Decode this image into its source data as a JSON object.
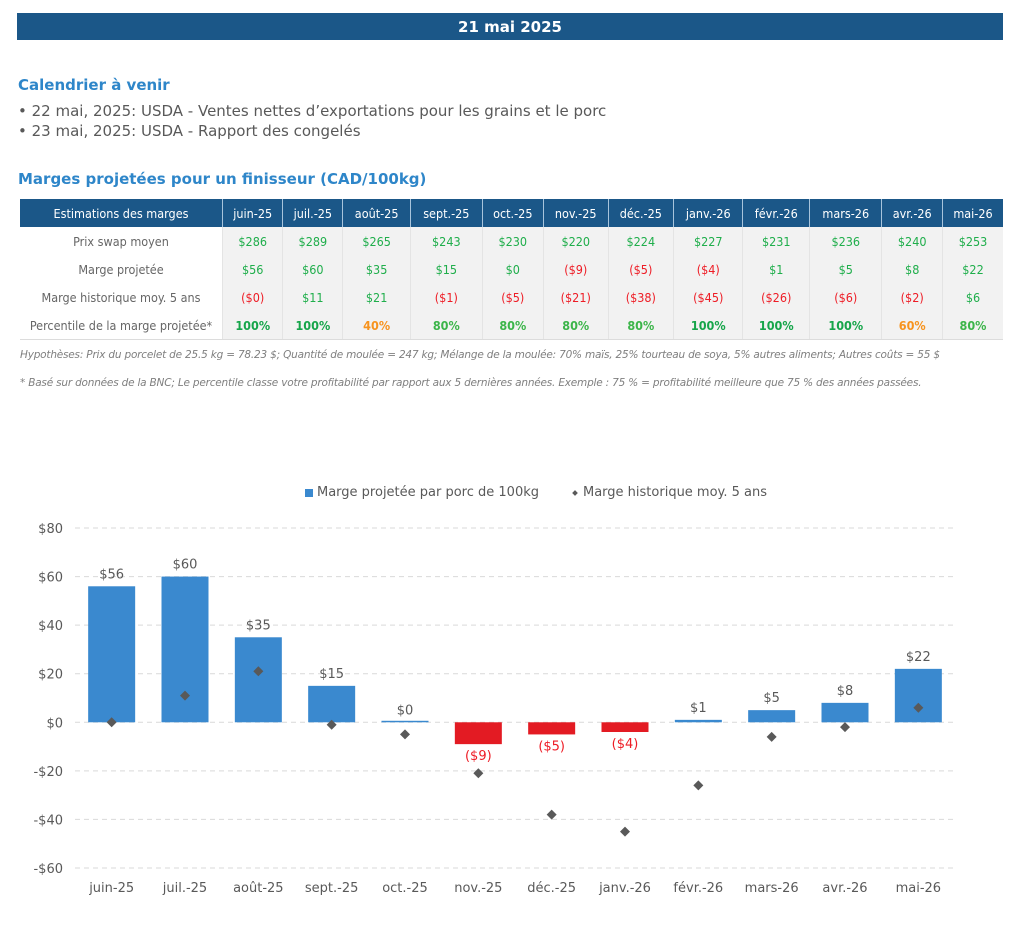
{
  "header": {
    "date": "21 mai 2025"
  },
  "calendar": {
    "title": "Calendrier à venir",
    "items": [
      "• 22 mai, 2025: USDA - Ventes nettes d’exportations pour les grains et le porc",
      "• 23 mai, 2025: USDA - Rapport des congelés"
    ]
  },
  "margins_section": {
    "title": "Marges projetées pour un finisseur (CAD/100kg)"
  },
  "table": {
    "corner": "Estimations des marges",
    "months": [
      "juin-25",
      "juil.-25",
      "août-25",
      "sept.-25",
      "oct.-25",
      "nov.-25",
      "déc.-25",
      "janv.-26",
      "févr.-26",
      "mars-26",
      "avr.-26",
      "mai-26"
    ],
    "rows": [
      {
        "label": "Prix swap moyen",
        "cells": [
          "$286",
          "$289",
          "$265",
          "$243",
          "$230",
          "$220",
          "$224",
          "$227",
          "$231",
          "$236",
          "$240",
          "$253"
        ]
      },
      {
        "label": "Marge projetée",
        "cells": [
          "$56",
          "$60",
          "$35",
          "$15",
          "$0",
          "($9)",
          "($5)",
          "($4)",
          "$1",
          "$5",
          "$8",
          "$22"
        ]
      },
      {
        "label": "Marge historique moy. 5 ans",
        "cells": [
          "($0)",
          "$11",
          "$21",
          "($1)",
          "($5)",
          "($21)",
          "($38)",
          "($45)",
          "($26)",
          "($6)",
          "($2)",
          "$6"
        ]
      },
      {
        "label": "Percentile de la marge projetée*",
        "cells": [
          "100%",
          "100%",
          "40%",
          "80%",
          "80%",
          "80%",
          "80%",
          "100%",
          "100%",
          "100%",
          "60%",
          "80%"
        ]
      }
    ]
  },
  "notes": {
    "hypotheses": "Hypothèses: Prix du porcelet de 25.5 kg = 78.23 $; Quantité de moulée = 247 kg; Mélange de la moulée: 70% maïs, 25% tourteau de soya, 5% autres aliments; Autres coûts = 55 $",
    "footnote": "* Basé sur données de la BNC; Le percentile classe votre profitabilité par rapport aux 5 dernières années. Exemple : 75 % = profitabilité meilleure que 75 % des années passées."
  },
  "colors": {
    "brand": "#1b5788",
    "bar_positive": "#3a89cf",
    "bar_negative": "#e31b23",
    "marker": "#595959",
    "positive_text": "#1fae4b",
    "negative_text": "#ee1c25",
    "mid_percentile": "#f7931e"
  },
  "chart_data": {
    "type": "bar",
    "title": "",
    "xlabel": "",
    "ylabel": "",
    "categories": [
      "juin-25",
      "juil.-25",
      "août-25",
      "sept.-25",
      "oct.-25",
      "nov.-25",
      "déc.-25",
      "janv.-26",
      "févr.-26",
      "mars-26",
      "avr.-26",
      "mai-26"
    ],
    "series": [
      {
        "name": "Marge projetée par porc de 100kg",
        "kind": "bar",
        "values": [
          56,
          60,
          35,
          15,
          0,
          -9,
          -5,
          -4,
          1,
          5,
          8,
          22
        ],
        "labels": [
          "$56",
          "$60",
          "$35",
          "$15",
          "$0",
          "($9)",
          "($5)",
          "($4)",
          "$1",
          "$5",
          "$8",
          "$22"
        ]
      },
      {
        "name": "Marge historique moy. 5 ans",
        "kind": "marker",
        "values": [
          0,
          11,
          21,
          -1,
          -5,
          -21,
          -38,
          -45,
          -26,
          -6,
          -2,
          6
        ]
      }
    ],
    "ylim": [
      -60,
      80
    ],
    "yticks": [
      80,
      60,
      40,
      20,
      0,
      -20,
      -40,
      -60
    ],
    "ytick_labels": [
      "$80",
      "$60",
      "$40",
      "$20",
      "$0",
      "-$20",
      "-$40",
      "-$60"
    ],
    "grid": true,
    "legend": "top-center"
  }
}
